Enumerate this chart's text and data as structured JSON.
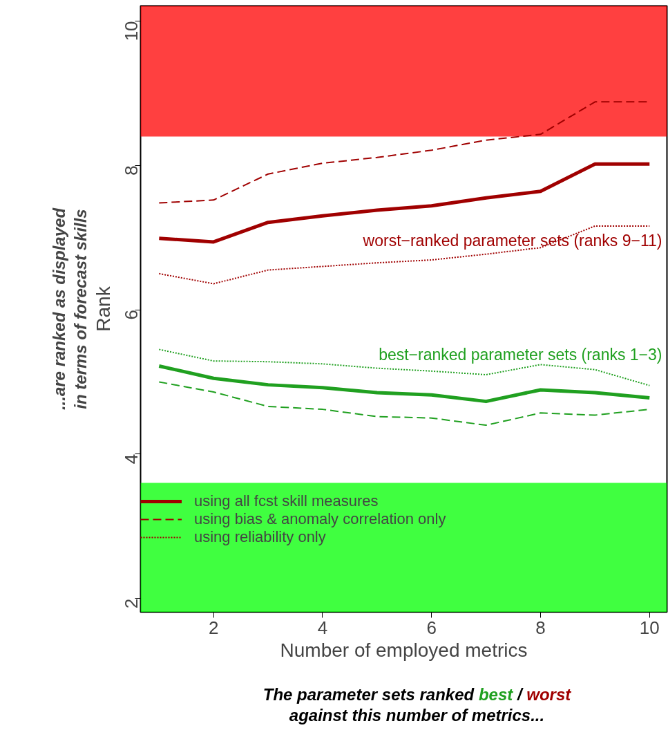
{
  "chart_data": {
    "type": "line",
    "xlabel": "Number of employed metrics",
    "ylabel": "Rank",
    "x": [
      1,
      2,
      3,
      4,
      5,
      6,
      7,
      8,
      9,
      10
    ],
    "xlim": [
      0.66,
      10.32
    ],
    "ylim": [
      1.81,
      10.21
    ],
    "xticks": [
      2,
      4,
      6,
      8,
      10
    ],
    "yticks": [
      2,
      4,
      6,
      8,
      10
    ],
    "grid": false,
    "legend": "bottom left",
    "series": [
      {
        "name": "using all fcst skill measures",
        "color": "#a00000",
        "line_style": "solid",
        "values": [
          6.99,
          6.94,
          7.21,
          7.3,
          7.38,
          7.44,
          7.55,
          7.64,
          8.02,
          8.02
        ]
      },
      {
        "name": "using bias & anomaly correlation only",
        "color": "#a00000",
        "line_style": "dashed",
        "values": [
          7.48,
          7.52,
          7.88,
          8.03,
          8.11,
          8.21,
          8.35,
          8.43,
          8.88,
          8.88
        ]
      },
      {
        "name": "using reliability only",
        "color": "#a00000",
        "line_style": "dotted",
        "values": [
          6.5,
          6.36,
          6.55,
          6.6,
          6.65,
          6.69,
          6.77,
          6.86,
          7.16,
          7.16
        ]
      },
      {
        "color": "#20a020",
        "line_style": "solid",
        "values": [
          5.22,
          5.05,
          4.96,
          4.92,
          4.85,
          4.82,
          4.73,
          4.89,
          4.85,
          4.78
        ]
      },
      {
        "color": "#20a020",
        "line_style": "dashed",
        "values": [
          5.0,
          4.86,
          4.66,
          4.62,
          4.52,
          4.5,
          4.4,
          4.57,
          4.54,
          4.62
        ]
      },
      {
        "color": "#20a020",
        "line_style": "dotted",
        "values": [
          5.45,
          5.29,
          5.28,
          5.25,
          5.19,
          5.15,
          5.1,
          5.24,
          5.17,
          4.95
        ]
      }
    ],
    "bands": [
      {
        "axis": "y",
        "from": 8.4,
        "to": 10.21,
        "color": "#ff0000"
      },
      {
        "axis": "y",
        "from": 1.81,
        "to": 3.6,
        "color": "#00ff00"
      }
    ],
    "annotations": [
      "worst−ranked parameter sets (ranks 9−11)",
      "best−ranked parameter sets (ranks 1−3)",
      "...are ranked as displayed",
      "in terms of forecast skills",
      "The parameter sets ranked",
      "best",
      "/",
      "worst",
      "against this number of metrics..."
    ]
  }
}
